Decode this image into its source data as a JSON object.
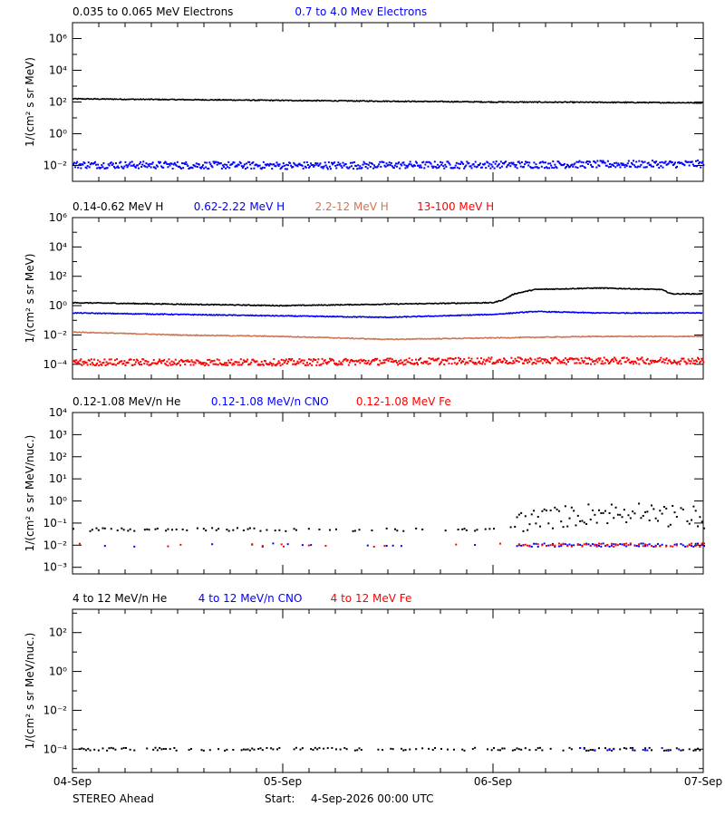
{
  "footer": {
    "left": "STEREO Ahead",
    "start_label": "Start:",
    "start_value": "4-Sep-2026 00:00 UTC"
  },
  "colors": {
    "black": "#000000",
    "blue": "#0000ff",
    "salmon": "#cc7755",
    "red": "#ff0000"
  },
  "chart_data": [
    {
      "type": "scatter",
      "scale": "log",
      "ylabel": "1/(cm² s sr MeV)",
      "ylim_exp": [
        -3,
        7
      ],
      "y_ticks": [
        {
          "exp": 6,
          "label": "10⁶"
        },
        {
          "exp": 4,
          "label": "10⁴"
        },
        {
          "exp": 2,
          "label": "10²"
        },
        {
          "exp": 0,
          "label": "10⁰"
        },
        {
          "exp": -2,
          "label": "10⁻²"
        }
      ],
      "x_tick_labels": [
        "04-Sep",
        "05-Sep",
        "06-Sep",
        "07-Sep"
      ],
      "xlim_days": [
        0,
        3
      ],
      "legend": [
        "0.035 to 0.065 MeV Electrons",
        "0.7 to 4.0 Mev Electrons"
      ],
      "series": [
        {
          "name": "0.035 to 0.065 MeV Electrons",
          "color": "#000000",
          "style": "line",
          "x": [
            0,
            0.5,
            1,
            1.5,
            2,
            2.5,
            3
          ],
          "y_log": [
            2.2,
            2.15,
            2.1,
            2.05,
            2.0,
            1.98,
            1.95
          ]
        },
        {
          "name": "0.7 to 4.0 Mev Electrons",
          "color": "#0000ff",
          "style": "dots",
          "x": [
            0,
            1,
            2,
            3
          ],
          "y_log": [
            -1.9,
            -1.95,
            -1.9,
            -1.85
          ]
        }
      ]
    },
    {
      "type": "scatter",
      "scale": "log",
      "ylabel": "1/(cm² s sr MeV)",
      "ylim_exp": [
        -5,
        6
      ],
      "y_ticks": [
        {
          "exp": 6,
          "label": "10⁶"
        },
        {
          "exp": 4,
          "label": "10⁴"
        },
        {
          "exp": 2,
          "label": "10²"
        },
        {
          "exp": 0,
          "label": "10⁰"
        },
        {
          "exp": -2,
          "label": "10⁻²"
        },
        {
          "exp": -4,
          "label": "10⁻⁴"
        }
      ],
      "x_tick_labels": [
        "04-Sep",
        "05-Sep",
        "06-Sep",
        "07-Sep"
      ],
      "xlim_days": [
        0,
        3
      ],
      "legend": [
        "0.14-0.62 MeV H",
        "0.62-2.22 MeV H",
        "2.2-12 MeV H",
        "13-100 MeV H"
      ],
      "series": [
        {
          "name": "0.14-0.62 MeV H",
          "color": "#000000",
          "style": "line",
          "x": [
            0,
            0.5,
            1,
            1.5,
            2,
            2.05,
            2.1,
            2.2,
            2.5,
            2.8,
            2.85,
            3
          ],
          "y_log": [
            0.2,
            0.1,
            0.0,
            0.1,
            0.2,
            0.4,
            0.8,
            1.1,
            1.2,
            1.1,
            0.8,
            0.8
          ]
        },
        {
          "name": "0.62-2.22 MeV H",
          "color": "#0000ff",
          "style": "line",
          "x": [
            0,
            0.5,
            1,
            1.5,
            2,
            2.2,
            2.5,
            3
          ],
          "y_log": [
            -0.5,
            -0.6,
            -0.7,
            -0.8,
            -0.6,
            -0.4,
            -0.5,
            -0.5
          ]
        },
        {
          "name": "2.2-12 MeV H",
          "color": "#cc7755",
          "style": "line",
          "x": [
            0,
            0.5,
            1,
            1.5,
            2,
            2.5,
            3
          ],
          "y_log": [
            -1.8,
            -2.0,
            -2.1,
            -2.3,
            -2.2,
            -2.1,
            -2.1
          ]
        },
        {
          "name": "13-100 MeV H",
          "color": "#ff0000",
          "style": "dots",
          "x": [
            0,
            1,
            2,
            3
          ],
          "y_log": [
            -3.8,
            -3.8,
            -3.7,
            -3.7
          ]
        }
      ]
    },
    {
      "type": "scatter",
      "scale": "log",
      "ylabel": "1/(cm² s sr MeV/nuc.)",
      "ylim_exp": [
        -3.3,
        4
      ],
      "y_ticks": [
        {
          "exp": 4,
          "label": "10⁴"
        },
        {
          "exp": 3,
          "label": "10³"
        },
        {
          "exp": 2,
          "label": "10²"
        },
        {
          "exp": 1,
          "label": "10¹"
        },
        {
          "exp": 0,
          "label": "10⁰"
        },
        {
          "exp": -1,
          "label": "10⁻¹"
        },
        {
          "exp": -2,
          "label": "10⁻²"
        },
        {
          "exp": -3,
          "label": "10⁻³"
        }
      ],
      "x_tick_labels": [
        "04-Sep",
        "05-Sep",
        "06-Sep",
        "07-Sep"
      ],
      "xlim_days": [
        0,
        3
      ],
      "legend": [
        "0.12-1.08 MeV/n He",
        "0.12-1.08 MeV/n CNO",
        "0.12-1.08 MeV Fe"
      ],
      "series": [
        {
          "name": "0.12-1.08 MeV/n He",
          "color": "#000000",
          "style": "sparse",
          "x": [
            0,
            1,
            2,
            2.5,
            3
          ],
          "y_log": [
            -1.3,
            -1.3,
            -1.3,
            -0.8,
            -1.0
          ]
        },
        {
          "name": "0.12-1.08 MeV/n CNO",
          "color": "#0000ff",
          "style": "sparse",
          "x": [
            0,
            1,
            2,
            2.5,
            3
          ],
          "y_log": [
            -2.0,
            -2.0,
            -2.0,
            -2.0,
            -2.0
          ]
        },
        {
          "name": "0.12-1.08 MeV Fe",
          "color": "#ff0000",
          "style": "sparse",
          "x": [
            0,
            1,
            2,
            3
          ],
          "y_log": [
            -2.0,
            -2.0,
            -2.0,
            -2.0
          ]
        }
      ]
    },
    {
      "type": "scatter",
      "scale": "log",
      "ylabel": "1/(cm² s sr MeV/nuc.)",
      "ylim_exp": [
        -5.2,
        3.2
      ],
      "y_ticks": [
        {
          "exp": 2,
          "label": "10²"
        },
        {
          "exp": 0,
          "label": "10⁰"
        },
        {
          "exp": -2,
          "label": "10⁻²"
        },
        {
          "exp": -4,
          "label": "10⁻⁴"
        }
      ],
      "x_tick_labels": [
        "04-Sep",
        "05-Sep",
        "06-Sep",
        "07-Sep"
      ],
      "xlim_days": [
        0,
        3
      ],
      "legend": [
        "4 to 12 MeV/n He",
        "4 to 12 MeV/n CNO",
        "4 to 12 MeV Fe"
      ],
      "series": [
        {
          "name": "4 to 12 MeV/n He",
          "color": "#000000",
          "style": "sparse",
          "x": [
            0,
            1,
            2,
            3
          ],
          "y_log": [
            -4.0,
            -4.0,
            -4.0,
            -4.0
          ]
        },
        {
          "name": "4 to 12 MeV/n CNO",
          "color": "#0000ff",
          "style": "sparse",
          "x": [
            0.33,
            2.4,
            2.9
          ],
          "y_log": [
            -5.1,
            -4.0,
            -4.0
          ]
        },
        {
          "name": "4 to 12 MeV Fe",
          "color": "#ff0000",
          "style": "sparse",
          "x": [],
          "y_log": []
        }
      ]
    }
  ]
}
